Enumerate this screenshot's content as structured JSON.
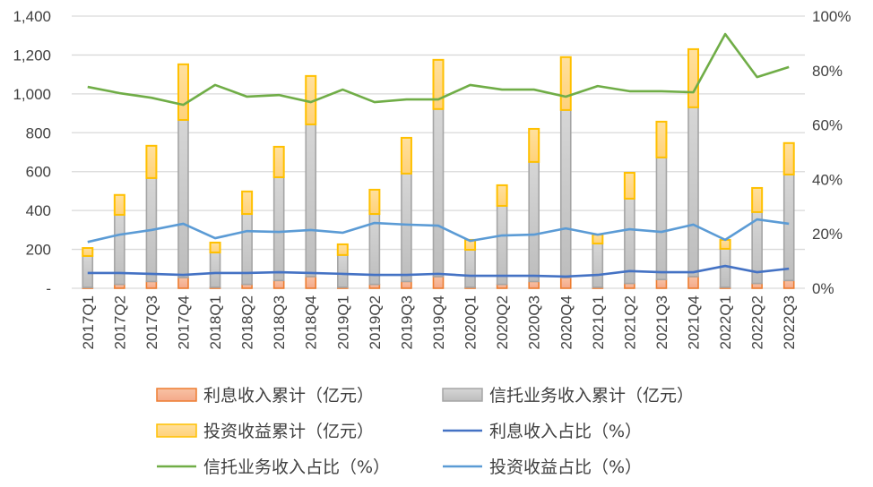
{
  "chart_data": {
    "type": "bar",
    "categories": [
      "2017Q1",
      "2017Q2",
      "2017Q3",
      "2017Q4",
      "2018Q1",
      "2018Q2",
      "2018Q3",
      "2018Q4",
      "2019Q1",
      "2019Q2",
      "2019Q3",
      "2019Q4",
      "2020Q1",
      "2020Q2",
      "2020Q3",
      "2020Q4",
      "2021Q1",
      "2021Q2",
      "2021Q3",
      "2021Q4",
      "2022Q1",
      "2022Q2",
      "2022Q3"
    ],
    "left_axis": {
      "ylim": [
        0,
        1400
      ],
      "ticks": [
        "-",
        "200",
        "400",
        "600",
        "800",
        "1,000",
        "1,200",
        "1,400"
      ]
    },
    "right_axis": {
      "ylim": [
        0,
        100
      ],
      "ticks": [
        "0%",
        "20%",
        "40%",
        "60%",
        "80%",
        "100%"
      ]
    },
    "grid": true,
    "legend_position": "bottom",
    "bar_series": [
      {
        "name": "利息收入累计（亿元）",
        "color": "#F4B183",
        "border": "#ED7D31",
        "values": [
          4,
          20,
          35,
          55,
          5,
          20,
          40,
          60,
          5,
          20,
          35,
          60,
          5,
          20,
          35,
          55,
          5,
          25,
          45,
          60,
          5,
          25,
          40
        ]
      },
      {
        "name": "信托业务收入累计（亿元）",
        "color": "#C9C9C9",
        "border": "#A5A5A5",
        "values": [
          162,
          358,
          532,
          811,
          179,
          362,
          531,
          783,
          166,
          362,
          555,
          862,
          193,
          404,
          615,
          862,
          225,
          436,
          628,
          871,
          198,
          367,
          545
        ]
      },
      {
        "name": "投资收益累计（亿元）",
        "color": "#FFD98A",
        "border": "#FFC000",
        "values": [
          41,
          102,
          166,
          286,
          51,
          116,
          157,
          249,
          55,
          125,
          184,
          253,
          51,
          106,
          170,
          272,
          46,
          133,
          184,
          299,
          46,
          124,
          162
        ]
      }
    ],
    "line_series": [
      {
        "name": "利息收入占比（%）",
        "color": "#4472C4",
        "values": [
          5.6,
          5.6,
          5.3,
          4.9,
          5.6,
          5.6,
          5.9,
          5.6,
          5.3,
          4.9,
          4.9,
          5.3,
          4.6,
          4.6,
          4.6,
          4.3,
          4.9,
          6.3,
          5.9,
          5.9,
          8.2,
          5.9,
          7.2
        ]
      },
      {
        "name": "信托业务收入占比（%）",
        "color": "#70AD47",
        "values": [
          74,
          71.7,
          70,
          67.4,
          74.7,
          70.4,
          71,
          68.4,
          73,
          68.4,
          69.4,
          69.4,
          74.7,
          73,
          73,
          70.4,
          74.3,
          72.4,
          72.4,
          72,
          93.4,
          77.6,
          81.3
        ]
      },
      {
        "name": "投资收益占比（%）",
        "color": "#5B9BD5",
        "values": [
          17,
          19.7,
          21.4,
          23.7,
          18.4,
          21,
          20.7,
          21.4,
          20.4,
          24,
          23.4,
          23,
          17.4,
          19.4,
          19.7,
          22,
          19.7,
          21.7,
          20.7,
          23.4,
          17.8,
          25.3,
          23.7
        ]
      }
    ]
  }
}
